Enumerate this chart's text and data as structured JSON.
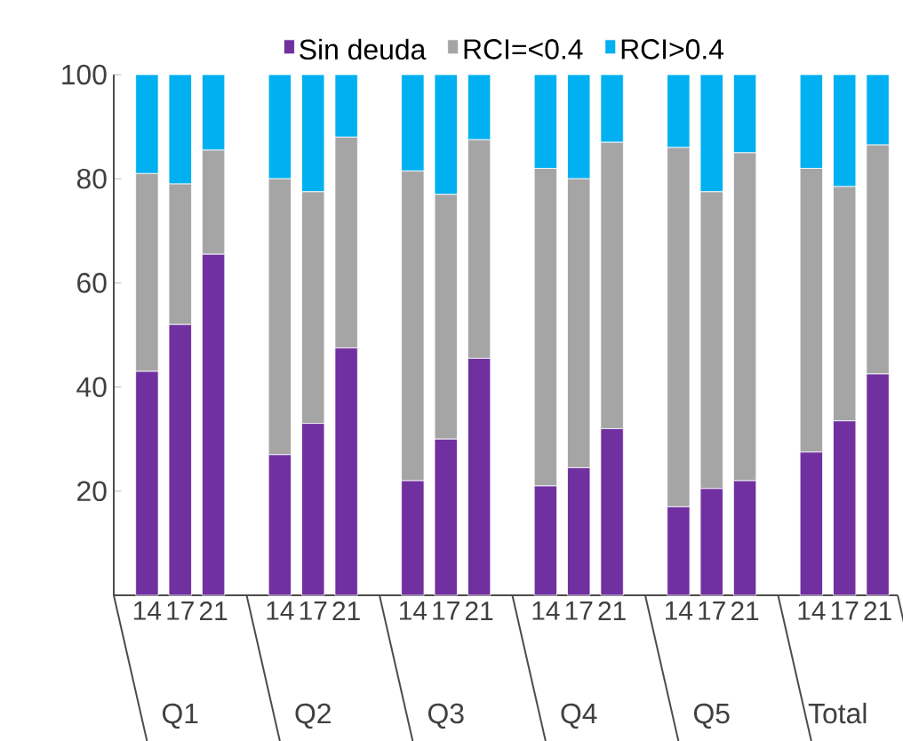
{
  "chart_data": {
    "type": "bar",
    "stacked": true,
    "legend": "top",
    "categories": [
      "14",
      "17",
      "21",
      "14",
      "17",
      "21",
      "14",
      "17",
      "21",
      "14",
      "17",
      "21",
      "14",
      "17",
      "21",
      "14",
      "17",
      "21"
    ],
    "series": [
      {
        "name": "Sin deuda",
        "color": "#7030a0",
        "values": [
          43,
          52,
          65.5,
          27,
          33,
          47.5,
          22,
          30,
          45.5,
          21,
          24.5,
          32,
          17,
          20.5,
          22,
          27.5,
          33.5,
          42.5
        ]
      },
      {
        "name": "RCI=<0.4",
        "color": "#a5a5a5",
        "values": [
          38,
          27,
          20,
          53,
          44.5,
          40.5,
          59.5,
          47,
          42,
          61,
          55.5,
          55,
          69,
          57,
          63,
          54.5,
          45,
          44
        ]
      },
      {
        "name": "RCI>0.4",
        "color": "#00b0f0",
        "values": [
          19,
          21,
          14.5,
          20,
          22.5,
          12,
          18.5,
          23,
          12.5,
          18,
          20,
          13,
          14,
          22.5,
          15,
          18,
          21.5,
          13.5
        ]
      }
    ],
    "ylim": [
      0,
      100
    ],
    "yticks": [
      {
        "value": 0,
        "label": null
      },
      20,
      40,
      60,
      80,
      100
    ],
    "annotations": [
      "Q1",
      "Q2",
      "Q3",
      "Q4",
      "Q5",
      "Total"
    ]
  }
}
